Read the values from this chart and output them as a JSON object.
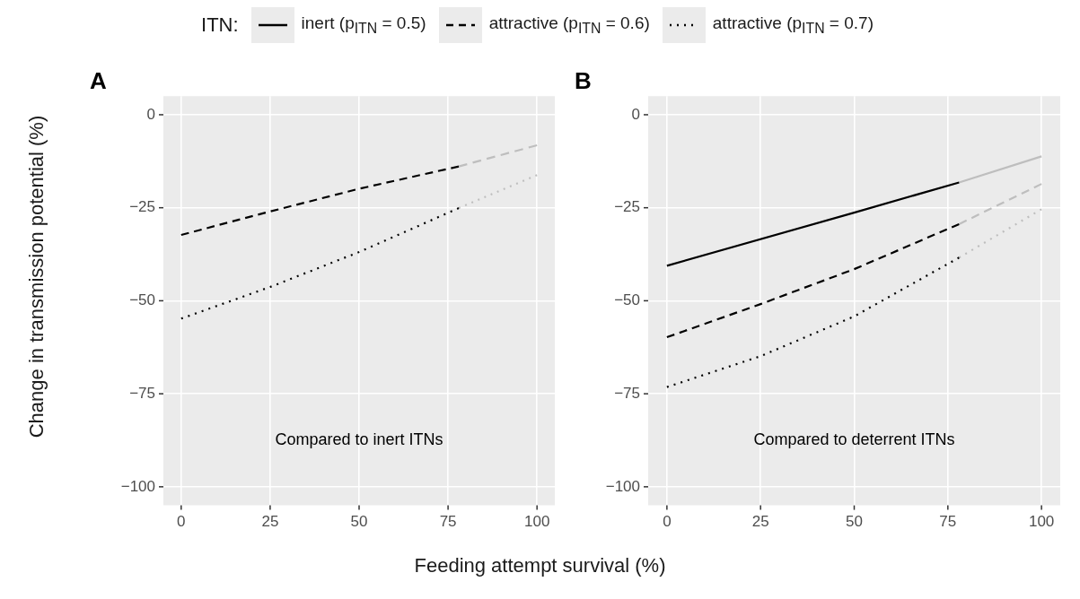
{
  "chart_data": [
    {
      "type": "line",
      "title": "A",
      "xlabel": "Feeding attempt survival (%)",
      "ylabel": "Change in transmission potential (%)",
      "annotations": [
        "Compared to inert ITNs"
      ],
      "xlim": [
        -5,
        105
      ],
      "ylim": [
        -105,
        5
      ],
      "xticks": [
        0,
        25,
        50,
        75,
        100
      ],
      "yticks": [
        -100,
        -75,
        -50,
        -25,
        0
      ],
      "grid": true,
      "legend": false,
      "marker": "none",
      "series": [
        {
          "color": "#000000",
          "line_style": "dashed",
          "x": [
            0,
            25,
            50,
            78
          ],
          "values": [
            -32.3,
            -26.0,
            -19.9,
            -13.9
          ]
        },
        {
          "color": "#bebebe",
          "line_style": "dashed",
          "x": [
            78,
            100
          ],
          "values": [
            -13.9,
            -8.2
          ]
        },
        {
          "color": "#000000",
          "line_style": "dotted",
          "x": [
            0,
            25,
            50,
            78
          ],
          "values": [
            -54.8,
            -46.3,
            -36.9,
            -25.1
          ]
        },
        {
          "color": "#bebebe",
          "line_style": "dotted",
          "x": [
            78,
            100
          ],
          "values": [
            -25.1,
            -16.2
          ]
        }
      ]
    },
    {
      "type": "line",
      "title": "B",
      "legend_title": "ITN:",
      "annotations": [
        "Compared to deterrent ITNs"
      ],
      "xlim": [
        -5,
        105
      ],
      "ylim": [
        -105,
        5
      ],
      "xticks": [
        0,
        25,
        50,
        75,
        100
      ],
      "yticks": [
        -100,
        -75,
        -50,
        -25,
        0
      ],
      "grid": true,
      "legend": "top",
      "marker": "none",
      "series": [
        {
          "name": "inert (p$_{ITN}$ = 0.5)",
          "color": "#000000",
          "line_style": "solid",
          "x": [
            0,
            50,
            78
          ],
          "values": [
            -40.6,
            -26.3,
            -18.2
          ]
        },
        {
          "color": "#bebebe",
          "line_style": "solid",
          "x": [
            78,
            100
          ],
          "values": [
            -18.2,
            -11.2
          ]
        },
        {
          "name": "attractive (p$_{ITN}$ = 0.6)",
          "color": "#000000",
          "line_style": "dashed",
          "x": [
            0,
            25,
            50,
            78
          ],
          "values": [
            -59.8,
            -50.9,
            -41.5,
            -29.4
          ]
        },
        {
          "color": "#bebebe",
          "line_style": "dashed",
          "x": [
            78,
            100
          ],
          "values": [
            -29.4,
            -18.6
          ]
        },
        {
          "name": "attractive (p$_{ITN}$ = 0.7)",
          "color": "#000000",
          "line_style": "dotted",
          "x": [
            0,
            25,
            50,
            78
          ],
          "values": [
            -73.2,
            -64.9,
            -54.2,
            -38.4
          ]
        },
        {
          "color": "#bebebe",
          "line_style": "dotted",
          "x": [
            78,
            100
          ],
          "values": [
            -38.4,
            -25.4
          ]
        }
      ]
    }
  ]
}
